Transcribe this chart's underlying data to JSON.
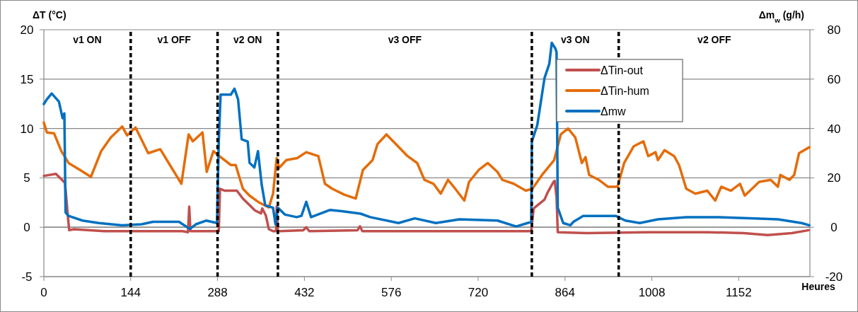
{
  "chart_data": {
    "type": "line",
    "xlabel": "Heures",
    "ylabel": "ΔT (°C)",
    "y2label": "Δm$_{w}$ (g/h)",
    "xlim": [
      0,
      1270
    ],
    "xticks": [
      0,
      144,
      288,
      432,
      576,
      720,
      864,
      1008,
      1152
    ],
    "ylim": [
      -5,
      20
    ],
    "yticks": [
      -5,
      0,
      5,
      10,
      15,
      20
    ],
    "y2lim": [
      -20,
      80
    ],
    "y2ticks": [
      -20,
      0,
      20,
      40,
      60,
      80
    ],
    "grid": "y",
    "legend": "top right",
    "line_style": "solid",
    "ref_lines": [
      {
        "axis": "x",
        "value": 144,
        "color": "#000000",
        "line_style": "dashed"
      },
      {
        "axis": "x",
        "value": 288,
        "color": "#000000",
        "line_style": "dashed"
      },
      {
        "axis": "x",
        "value": 388,
        "color": "#000000",
        "line_style": "dashed"
      },
      {
        "axis": "x",
        "value": 809,
        "color": "#000000",
        "line_style": "dashed"
      },
      {
        "axis": "x",
        "value": 953,
        "color": "#000000",
        "line_style": "dashed"
      }
    ],
    "annotations": [
      "v1 ON",
      "v1 OFF",
      "v2 ON",
      "v3 OFF",
      "v3 ON",
      "v2 OFF"
    ],
    "series": [
      {
        "name": "ΔTin-out",
        "color": "#c0504d",
        "x": [
          0,
          20,
          35,
          40,
          42,
          50,
          100,
          230,
          239,
          241,
          243,
          290,
          292,
          300,
          320,
          330,
          340,
          350,
          360,
          362,
          368,
          373,
          380,
          385,
          386,
          388,
          390,
          430,
          435,
          440,
          520,
          524,
          528,
          700,
          808,
          812,
          830,
          835,
          845,
          847,
          850,
          852,
          900,
          1000,
          1100,
          1160,
          1200,
          1240,
          1268
        ],
        "values": [
          5.2,
          5.4,
          4.5,
          1,
          -0.3,
          -0.2,
          -0.4,
          -0.4,
          -0.5,
          2.1,
          -0.4,
          -0.4,
          3.9,
          3.7,
          3.7,
          2.9,
          2.3,
          1.7,
          1.4,
          1.9,
          1.2,
          -0.2,
          -0.4,
          -0.4,
          2.1,
          -0.4,
          -0.4,
          -0.3,
          0,
          -0.4,
          -0.3,
          0.1,
          -0.4,
          -0.4,
          -0.4,
          1.9,
          2.8,
          3.5,
          4.6,
          4.7,
          3,
          -0.5,
          -0.6,
          -0.5,
          -0.5,
          -0.6,
          -0.8,
          -0.6,
          -0.3
        ]
      },
      {
        "name": "ΔTin-hum",
        "color": "#e46c0a",
        "x": [
          0,
          5,
          17,
          29,
          41,
          60,
          78,
          95,
          111,
          130,
          138,
          152,
          173,
          193,
          209,
          228,
          240,
          247,
          263,
          270,
          281,
          291,
          310,
          318,
          330,
          341,
          357,
          373,
          380,
          386,
          390,
          402,
          420,
          435,
          455,
          466,
          478,
          498,
          517,
          529,
          545,
          553,
          568,
          584,
          603,
          619,
          631,
          646,
          658,
          670,
          682,
          697,
          705,
          721,
          736,
          752,
          760,
          779,
          799,
          810,
          826,
          846,
          857,
          869,
          881,
          892,
          898,
          904,
          920,
          935,
          951,
          962,
          978,
          994,
          1002,
          1014,
          1018,
          1029,
          1045,
          1053,
          1065,
          1080,
          1100,
          1113,
          1123,
          1139,
          1154,
          1162,
          1186,
          1205,
          1217,
          1221,
          1236,
          1244,
          1252,
          1269
        ],
        "values": [
          10.6,
          9.6,
          9.5,
          7.7,
          6.5,
          5.8,
          5.1,
          7.7,
          9.1,
          10.2,
          9.3,
          10.1,
          7.5,
          7.9,
          6.3,
          4.4,
          9.4,
          8.7,
          9.6,
          5.6,
          7.7,
          7.2,
          6.3,
          6.3,
          3.9,
          3.2,
          2.5,
          2.0,
          3.4,
          7.0,
          6.0,
          6.8,
          7.0,
          7.6,
          7.2,
          4.4,
          3.9,
          3.3,
          2.9,
          5.8,
          6.8,
          8.4,
          9.4,
          8.4,
          7.2,
          6.5,
          4.8,
          4.4,
          3.4,
          4.8,
          3.9,
          2.7,
          4.6,
          5.8,
          6.5,
          5.6,
          4.8,
          4.4,
          3.7,
          3.9,
          5.3,
          6.8,
          9.4,
          10.0,
          9.1,
          6.5,
          7.1,
          5.3,
          4.8,
          4.1,
          4.1,
          6.5,
          8.2,
          8.7,
          7.2,
          7.6,
          6.8,
          7.8,
          7.2,
          6.3,
          3.9,
          3.4,
          3.7,
          2.7,
          4.1,
          3.7,
          4.4,
          3.2,
          4.6,
          4.8,
          4.1,
          5.3,
          4.8,
          5.3,
          7.5,
          8.1
        ]
      },
      {
        "name": "Δmw",
        "color": "#0070c0",
        "axis": "y2",
        "x": [
          0,
          5,
          13,
          25,
          31,
          34,
          36,
          41,
          64,
          91,
          130,
          162,
          181,
          224,
          242,
          252,
          269,
          287,
          290,
          293,
          310,
          316,
          322,
          328,
          338,
          341,
          349,
          355,
          361,
          367,
          380,
          384,
          388,
          400,
          419,
          427,
          435,
          443,
          474,
          494,
          525,
          541,
          588,
          615,
          650,
          689,
          752,
          783,
          802,
          808,
          809,
          818,
          830,
          838,
          842,
          848,
          850,
          852,
          861,
          873,
          878,
          894,
          917,
          948,
          964,
          988,
          1018,
          1065,
          1116,
          1178,
          1217,
          1256,
          1269
        ],
        "values": [
          49.9,
          51.8,
          54.2,
          50.9,
          44.2,
          46.1,
          6.0,
          4.6,
          2.7,
          1.7,
          0.8,
          1.2,
          2.2,
          2.2,
          -0.7,
          1.2,
          2.7,
          1.7,
          34.7,
          53.7,
          53.7,
          56.1,
          51.8,
          35.6,
          34.7,
          26.1,
          24.2,
          30.8,
          17.5,
          8.9,
          7.9,
          1.2,
          7.9,
          5.1,
          4.1,
          4.6,
          10.3,
          4.1,
          7.0,
          6.5,
          5.5,
          4.1,
          1.7,
          3.6,
          1.7,
          3.2,
          2.7,
          0.3,
          1.7,
          2.2,
          34.7,
          41.3,
          60.4,
          66.2,
          74.7,
          72.4,
          70.9,
          7.9,
          1.7,
          0.8,
          2.2,
          4.6,
          4.6,
          4.6,
          2.7,
          1.7,
          3.2,
          4.1,
          4.1,
          3.6,
          3.2,
          1.7,
          0.8
        ]
      }
    ]
  }
}
